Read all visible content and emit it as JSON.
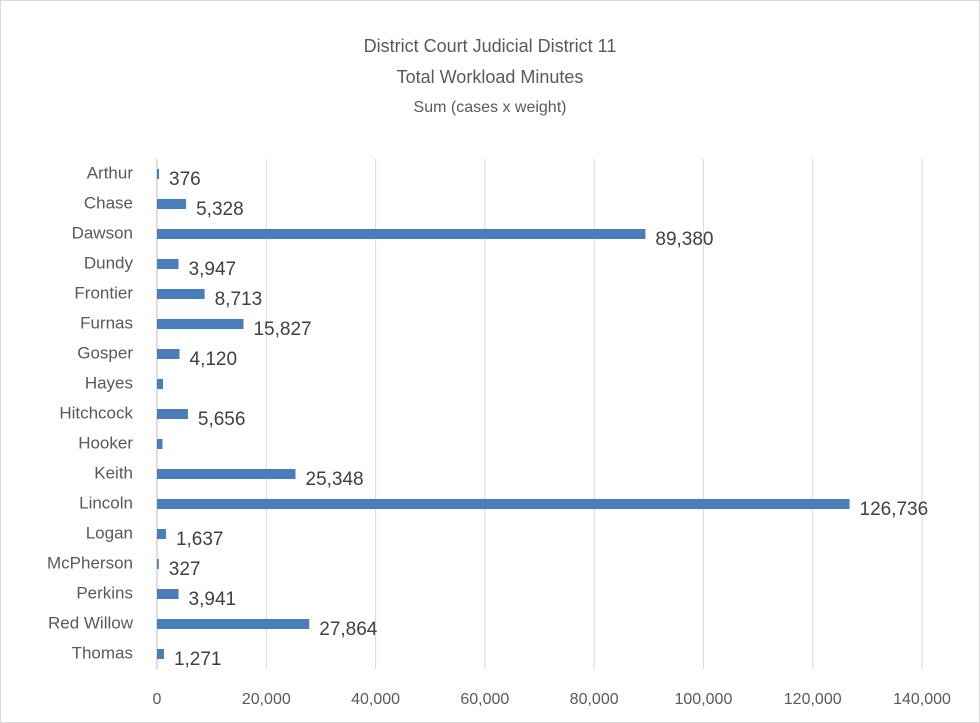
{
  "chart_data": {
    "type": "barh",
    "title": "District Court Judicial District 11",
    "subtitle": "Total Workload Minutes",
    "note": "Sum (cases x weight)",
    "categories": [
      "Arthur",
      "Chase",
      "Dawson",
      "Dundy",
      "Frontier",
      "Furnas",
      "Gosper",
      "Hayes",
      "Hitchcock",
      "Hooker",
      "Keith",
      "Lincoln",
      "Logan",
      "McPherson",
      "Perkins",
      "Red Willow",
      "Thomas"
    ],
    "values": [
      376,
      5328,
      89380,
      3947,
      8713,
      15827,
      4120,
      1100,
      5656,
      1000,
      25348,
      126736,
      1637,
      327,
      3941,
      27864,
      1271
    ],
    "value_labels": [
      "376",
      "5,328",
      "89,380",
      "3,947",
      "8,713",
      "15,827",
      "4,120",
      null,
      "5,656",
      null,
      "25,348",
      "126,736",
      "1,637",
      "327",
      "3,941",
      "27,864",
      "1,271"
    ],
    "color": "#4a7ebb",
    "xlim": [
      0,
      140000
    ],
    "xticks": [
      0,
      {
        "value": 20000,
        "label": "20,000"
      },
      {
        "value": 40000,
        "label": "40,000"
      },
      {
        "value": 60000,
        "label": "60,000"
      },
      {
        "value": 80000,
        "label": "80,000"
      },
      {
        "value": 100000,
        "label": "100,000"
      },
      {
        "value": 120000,
        "label": "120,000"
      },
      {
        "value": 140000,
        "label": "140,000"
      }
    ],
    "grid": true
  }
}
